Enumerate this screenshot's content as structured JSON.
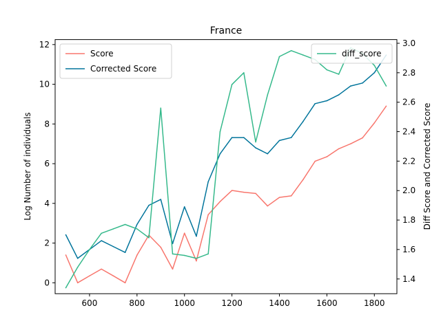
{
  "chart_data": {
    "type": "line",
    "title": "France",
    "xlabel": "",
    "ylabel": "Log Number of individuals",
    "y2label": "Diff Score and Corrected Score",
    "xlim": [
      455,
      1895
    ],
    "ylim": [
      -0.55,
      12.25
    ],
    "y2lim": [
      1.3,
      3.025
    ],
    "x": [
      500,
      550,
      600,
      650,
      700,
      750,
      800,
      850,
      900,
      950,
      1000,
      1050,
      1100,
      1150,
      1200,
      1250,
      1300,
      1350,
      1400,
      1450,
      1500,
      1550,
      1600,
      1650,
      1700,
      1750,
      1800,
      1850
    ],
    "x_ticks": [
      600,
      800,
      1000,
      1200,
      1400,
      1600,
      1800
    ],
    "y_ticks": [
      0,
      2,
      4,
      6,
      8,
      10,
      12
    ],
    "y2_ticks": [
      1.4,
      1.6,
      1.8,
      2.0,
      2.2,
      2.4,
      2.6,
      2.8,
      3.0
    ],
    "y2_tick_labels": [
      "1.4",
      "1.6",
      "1.8",
      "2.0",
      "2.2",
      "2.4",
      "2.6",
      "2.8",
      "3.0"
    ],
    "series": [
      {
        "name": "Score",
        "axis": "left",
        "color": "#f8766d",
        "values": [
          1.4,
          0.0,
          0.35,
          0.69,
          0.35,
          0.0,
          1.39,
          2.4,
          1.79,
          0.69,
          2.5,
          1.1,
          3.43,
          4.09,
          4.65,
          4.56,
          4.5,
          3.87,
          4.3,
          4.38,
          5.2,
          6.12,
          6.35,
          6.75,
          7.0,
          7.3,
          8.05,
          8.9
        ]
      },
      {
        "name": "Corrected Score",
        "axis": "right",
        "color": "#00749b",
        "values": [
          1.7,
          1.54,
          1.6,
          1.66,
          1.62,
          1.58,
          1.77,
          1.9,
          1.94,
          1.64,
          1.89,
          1.69,
          2.06,
          2.25,
          2.36,
          2.36,
          2.29,
          2.25,
          2.34,
          2.36,
          2.47,
          2.59,
          2.61,
          2.65,
          2.71,
          2.73,
          2.8,
          2.92
        ]
      },
      {
        "name": "diff_score",
        "axis": "right",
        "color": "#35b98b",
        "values": [
          1.34,
          1.48,
          1.6,
          1.71,
          1.74,
          1.77,
          1.74,
          1.68,
          2.56,
          1.57,
          1.56,
          1.54,
          1.57,
          2.4,
          2.72,
          2.8,
          2.33,
          2.65,
          2.91,
          2.95,
          2.92,
          2.89,
          2.82,
          2.79,
          2.97,
          2.93,
          2.85,
          2.71
        ]
      }
    ],
    "legend_left": {
      "placement": "upper-left",
      "entries": [
        "Score",
        "Corrected Score"
      ]
    },
    "legend_right": {
      "placement": "upper-right",
      "entries": [
        "diff_score"
      ]
    },
    "grid": false
  }
}
